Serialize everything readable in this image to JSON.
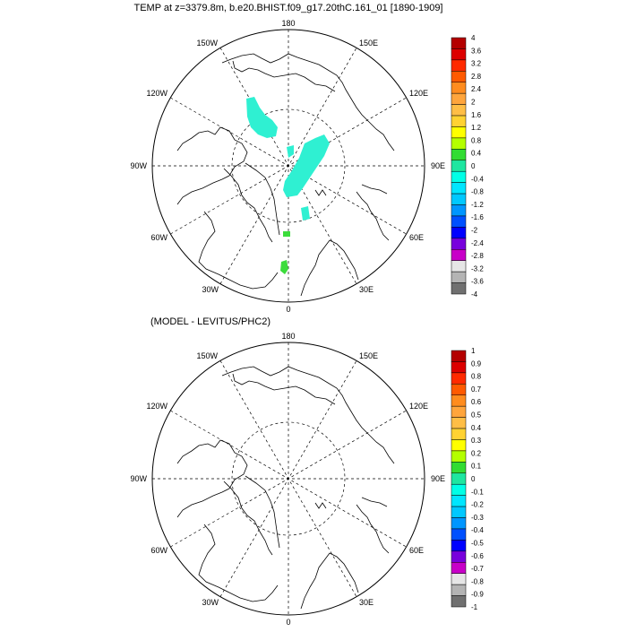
{
  "panels": [
    {
      "title": "TEMP at z=3379.8m, b.e20.BHIST.f09_g17.20thC.161_01 [1890-1909]",
      "lon_labels": {
        "top": "180",
        "bottom": "0",
        "left": "90W",
        "right": "90E",
        "upper_left_1": "150W",
        "upper_left_2": "120W",
        "lower_left_1": "60W",
        "lower_left_2": "30W",
        "upper_right_1": "150E",
        "upper_right_2": "120E",
        "lower_right_1": "60E",
        "lower_right_2": "30E"
      },
      "colorbar": {
        "labels": [
          "4",
          "3.6",
          "3.2",
          "2.8",
          "2.4",
          "2",
          "1.6",
          "1.2",
          "0.8",
          "0.4",
          "0",
          "-0.4",
          "-0.8",
          "-1.2",
          "-1.6",
          "-2",
          "-2.4",
          "-2.8",
          "-3.2",
          "-3.6",
          "-4"
        ],
        "colors": [
          "#b40000",
          "#dc0000",
          "#ff2a00",
          "#ff5a00",
          "#ff8c1e",
          "#ffa53c",
          "#ffbe46",
          "#ffd232",
          "#ffff00",
          "#b4ff00",
          "#32dc32",
          "#1ee6a0",
          "#00ffe6",
          "#00e6ff",
          "#00c8ff",
          "#0096ff",
          "#0050ff",
          "#0000ff",
          "#7800dc",
          "#c800c8",
          "#e6e6e6",
          "#b4b4b4",
          "#707070"
        ]
      }
    },
    {
      "title": "(MODEL - LEVITUS/PHC2)",
      "lon_labels": {
        "top": "180",
        "bottom": "0",
        "left": "90W",
        "right": "90E",
        "upper_left_1": "150W",
        "upper_left_2": "120W",
        "lower_left_1": "60W",
        "lower_left_2": "30W",
        "upper_right_1": "150E",
        "upper_right_2": "120E",
        "lower_right_1": "60E",
        "lower_right_2": "30E"
      },
      "colorbar": {
        "labels": [
          "1",
          "0.9",
          "0.8",
          "0.7",
          "0.6",
          "0.5",
          "0.4",
          "0.3",
          "0.2",
          "0.1",
          "0",
          "-0.1",
          "-0.2",
          "-0.3",
          "-0.4",
          "-0.5",
          "-0.6",
          "-0.7",
          "-0.8",
          "-0.9",
          "-1"
        ],
        "colors": [
          "#b40000",
          "#dc0000",
          "#ff2a00",
          "#ff5a00",
          "#ff8c1e",
          "#ffa53c",
          "#ffbe46",
          "#ffd232",
          "#ffff00",
          "#b4ff00",
          "#32dc32",
          "#1ee6a0",
          "#00ffe6",
          "#00e6ff",
          "#00c8ff",
          "#0096ff",
          "#0050ff",
          "#0000ff",
          "#7800dc",
          "#c800c8",
          "#e6e6e6",
          "#b4b4b4",
          "#707070"
        ]
      }
    }
  ],
  "anomaly_patch_colors": {
    "cyan": "#2ff0d2",
    "green": "#3cdc3c"
  }
}
